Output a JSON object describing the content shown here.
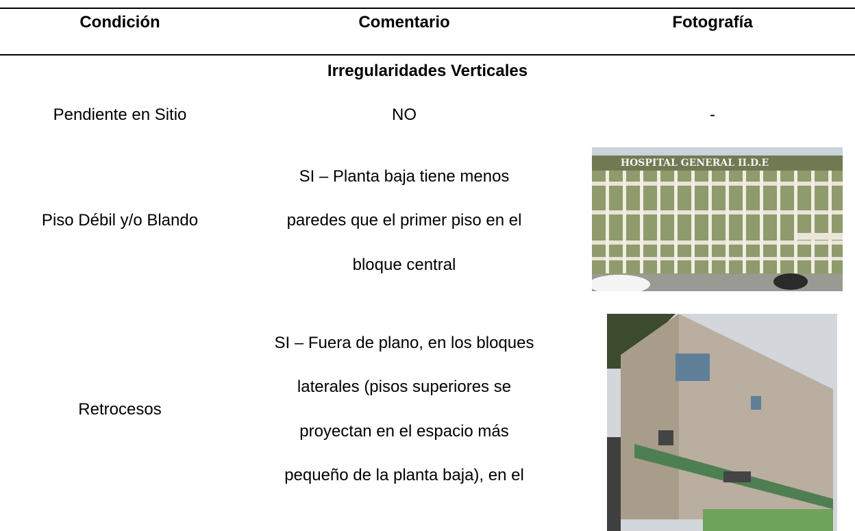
{
  "table": {
    "headers": [
      "Condición",
      "Comentario",
      "Fotografía"
    ],
    "section": "Irregularidades Verticales",
    "rows": [
      {
        "condition": "Pendiente en Sitio",
        "comment_lines": [
          "NO"
        ],
        "photo": "-"
      },
      {
        "condition": "Piso Débil y/o Blando",
        "comment_lines": [
          "SI – Planta baja tiene menos",
          "paredes que el primer piso en el",
          "bloque central"
        ],
        "photo_sign": "HOSPITAL GENERAL II.D.E"
      },
      {
        "condition": "Retrocesos",
        "comment_lines": [
          "SI – Fuera de plano, en los bloques",
          "laterales (pisos superiores se",
          "proyectan en el espacio más",
          "pequeño de la planta baja), en el"
        ]
      }
    ]
  }
}
